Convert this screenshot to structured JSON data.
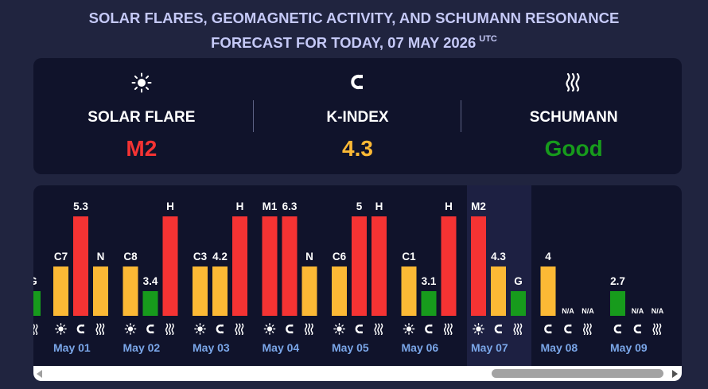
{
  "header": {
    "line1": "SOLAR FLARES, GEOMAGNETIC ACTIVITY, AND SCHUMANN RESONANCE",
    "line2": "FORECAST FOR TODAY, 07 MAY 2026",
    "tz": "UTC"
  },
  "summary": {
    "solar": {
      "label": "SOLAR FLARE",
      "value": "M2",
      "color": "#f53333",
      "icon": "sun-icon"
    },
    "kindex": {
      "label": "K-INDEX",
      "value": "4.3",
      "color": "#fcb935",
      "icon": "magnet-icon"
    },
    "schumann": {
      "label": "SCHUMANN",
      "value": "Good",
      "color": "#179b1c",
      "icon": "waves-icon"
    }
  },
  "colors": {
    "red": "#f53333",
    "yellow": "#fcb935",
    "green": "#179b1c"
  },
  "chart_data": {
    "type": "bar",
    "categories": [
      "May 01",
      "May 02",
      "May 03",
      "May 04",
      "May 05",
      "May 06",
      "May 07",
      "May 08",
      "May 09"
    ],
    "today": "May 07",
    "partial_left_label": "G",
    "days": [
      {
        "date": "May 01",
        "bars": [
          {
            "kind": "solar",
            "label": "C7",
            "level": 2,
            "color": "yellow"
          },
          {
            "kind": "kindex",
            "label": "5.3",
            "level": 4,
            "color": "red"
          },
          {
            "kind": "schumann",
            "label": "N",
            "level": 2,
            "color": "yellow"
          }
        ]
      },
      {
        "date": "May 02",
        "bars": [
          {
            "kind": "solar",
            "label": "C8",
            "level": 2,
            "color": "yellow"
          },
          {
            "kind": "kindex",
            "label": "3.4",
            "level": 1,
            "color": "green"
          },
          {
            "kind": "schumann",
            "label": "H",
            "level": 4,
            "color": "red"
          }
        ]
      },
      {
        "date": "May 03",
        "bars": [
          {
            "kind": "solar",
            "label": "C3",
            "level": 2,
            "color": "yellow"
          },
          {
            "kind": "kindex",
            "label": "4.2",
            "level": 2,
            "color": "yellow"
          },
          {
            "kind": "schumann",
            "label": "H",
            "level": 4,
            "color": "red"
          }
        ]
      },
      {
        "date": "May 04",
        "bars": [
          {
            "kind": "solar",
            "label": "M1",
            "level": 4,
            "color": "red"
          },
          {
            "kind": "kindex",
            "label": "6.3",
            "level": 4,
            "color": "red"
          },
          {
            "kind": "schumann",
            "label": "N",
            "level": 2,
            "color": "yellow"
          }
        ]
      },
      {
        "date": "May 05",
        "bars": [
          {
            "kind": "solar",
            "label": "C6",
            "level": 2,
            "color": "yellow"
          },
          {
            "kind": "kindex",
            "label": "5",
            "level": 4,
            "color": "red"
          },
          {
            "kind": "schumann",
            "label": "H",
            "level": 4,
            "color": "red"
          }
        ]
      },
      {
        "date": "May 06",
        "bars": [
          {
            "kind": "solar",
            "label": "C1",
            "level": 2,
            "color": "yellow"
          },
          {
            "kind": "kindex",
            "label": "3.1",
            "level": 1,
            "color": "green"
          },
          {
            "kind": "schumann",
            "label": "H",
            "level": 4,
            "color": "red"
          }
        ]
      },
      {
        "date": "May 07",
        "bars": [
          {
            "kind": "solar",
            "label": "M2",
            "level": 4,
            "color": "red"
          },
          {
            "kind": "kindex",
            "label": "4.3",
            "level": 2,
            "color": "yellow"
          },
          {
            "kind": "schumann",
            "label": "G",
            "level": 1,
            "color": "green"
          }
        ]
      },
      {
        "date": "May 08",
        "bars": [
          {
            "kind": "kindex",
            "label": "4",
            "level": 2,
            "color": "yellow"
          },
          {
            "kind": "kindex2",
            "label": "N/A",
            "level": 0,
            "color": ""
          },
          {
            "kind": "schumann",
            "label": "N/A",
            "level": 0,
            "color": ""
          }
        ]
      },
      {
        "date": "May 09",
        "bars": [
          {
            "kind": "kindex",
            "label": "2.7",
            "level": 1,
            "color": "green"
          },
          {
            "kind": "kindex2",
            "label": "N/A",
            "level": 0,
            "color": ""
          },
          {
            "kind": "schumann",
            "label": "N/A",
            "level": 0,
            "color": ""
          }
        ]
      }
    ],
    "icons_per_day": [
      [
        "sun-icon",
        "magnet-icon",
        "waves-icon"
      ],
      [
        "sun-icon",
        "magnet-icon",
        "waves-icon"
      ],
      [
        "sun-icon",
        "magnet-icon",
        "waves-icon"
      ],
      [
        "sun-icon",
        "magnet-icon",
        "waves-icon"
      ],
      [
        "sun-icon",
        "magnet-icon",
        "waves-icon"
      ],
      [
        "sun-icon",
        "magnet-icon",
        "waves-icon"
      ],
      [
        "sun-icon",
        "magnet-icon",
        "waves-icon"
      ],
      [
        "magnet-icon",
        "magnet-icon",
        "waves-icon"
      ],
      [
        "magnet-icon",
        "magnet-icon",
        "waves-icon"
      ]
    ]
  }
}
